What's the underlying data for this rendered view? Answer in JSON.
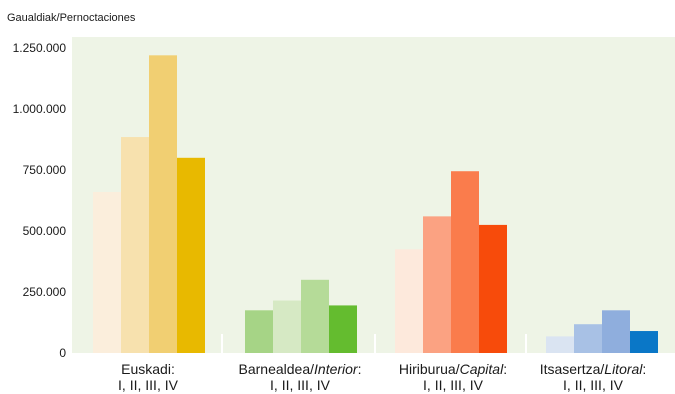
{
  "chart_data": {
    "type": "bar",
    "ylabel": "Gaualdiak/Pernoctaciones",
    "ylim": [
      0,
      1250000
    ],
    "yticks": [
      0,
      250000,
      500000,
      750000,
      1000000,
      1250000
    ],
    "ytick_labels": [
      "0",
      "250.000",
      "500.000",
      "750.000",
      "1.000.000",
      "1.250.000"
    ],
    "grid": false,
    "background_color": "#EEF4E6",
    "categories": [
      {
        "name_plain": "Euskadi:",
        "name_italic": "",
        "name_suffix": "",
        "sublabel": "I, II, III, IV",
        "values": [
          660000,
          885000,
          1220000,
          800000
        ],
        "colors": [
          "#FBEEDC",
          "#F7E1AE",
          "#F1CF72",
          "#E8B900"
        ]
      },
      {
        "name_plain": "Barnealdea/",
        "name_italic": "Interior",
        "name_suffix": ":",
        "sublabel": "I, II, III, IV",
        "values": [
          175000,
          215000,
          300000,
          195000
        ],
        "colors": [
          "#A6D486",
          "#D6E9C4",
          "#B5DB98",
          "#64BC2F"
        ]
      },
      {
        "name_plain": "Hiriburua/",
        "name_italic": "Capital",
        "name_suffix": ":",
        "sublabel": "I, II, III, IV",
        "values": [
          425000,
          560000,
          745000,
          525000
        ],
        "colors": [
          "#FDE9DC",
          "#FBA282",
          "#FA7C4C",
          "#F74B0B"
        ]
      },
      {
        "name_plain": "Itsasertza/",
        "name_italic": "Litoral",
        "name_suffix": ":",
        "sublabel": "I, II, III, IV",
        "values": [
          68000,
          118000,
          175000,
          90000
        ],
        "colors": [
          "#DAE4F2",
          "#A8C1E5",
          "#8FAEDD",
          "#0A77C7"
        ]
      }
    ]
  }
}
